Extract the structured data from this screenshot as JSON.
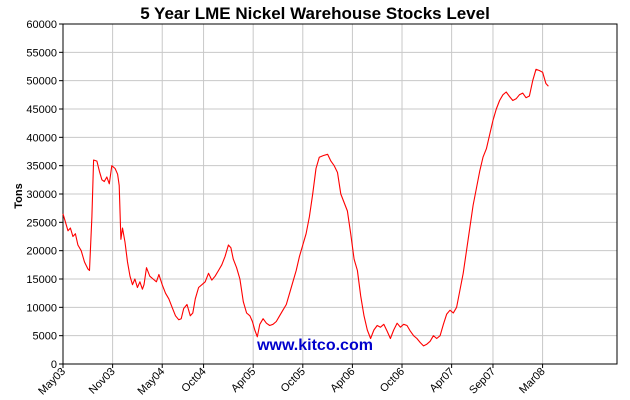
{
  "chart_data": {
    "type": "line",
    "title": "5 Year LME Nickel Warehouse Stocks Level",
    "ylabel": "Tons",
    "xlabel": "",
    "ylim": [
      0,
      60000
    ],
    "yticks": [
      0,
      5000,
      10000,
      15000,
      20000,
      25000,
      30000,
      35000,
      40000,
      45000,
      50000,
      55000,
      60000
    ],
    "xlim": [
      0,
      67
    ],
    "xticks": [
      {
        "label": "May03",
        "t": 0
      },
      {
        "label": "Nov03",
        "t": 6
      },
      {
        "label": "May04",
        "t": 12
      },
      {
        "label": "Oct04",
        "t": 17
      },
      {
        "label": "Apr05",
        "t": 23
      },
      {
        "label": "Oct05",
        "t": 29
      },
      {
        "label": "Apr06",
        "t": 35
      },
      {
        "label": "Oct06",
        "t": 41
      },
      {
        "label": "Apr07",
        "t": 47
      },
      {
        "label": "Sep07",
        "t": 52
      },
      {
        "label": "Mar08",
        "t": 58
      }
    ],
    "grid": true,
    "line_color": "#ff0000",
    "watermark": "www.kitco.com",
    "series": [
      {
        "points": [
          [
            0.0,
            26500
          ],
          [
            0.3,
            25000
          ],
          [
            0.6,
            23500
          ],
          [
            0.9,
            24000
          ],
          [
            1.2,
            22500
          ],
          [
            1.5,
            23000
          ],
          [
            1.8,
            21000
          ],
          [
            2.2,
            20000
          ],
          [
            2.6,
            18000
          ],
          [
            3.0,
            16800
          ],
          [
            3.2,
            16500
          ],
          [
            3.5,
            26000
          ],
          [
            3.7,
            36000
          ],
          [
            4.1,
            35800
          ],
          [
            4.4,
            34000
          ],
          [
            4.7,
            32500
          ],
          [
            5.0,
            32200
          ],
          [
            5.3,
            33000
          ],
          [
            5.6,
            31800
          ],
          [
            5.9,
            35000
          ],
          [
            6.3,
            34500
          ],
          [
            6.6,
            33500
          ],
          [
            6.8,
            31500
          ],
          [
            7.0,
            22000
          ],
          [
            7.2,
            24000
          ],
          [
            7.5,
            21500
          ],
          [
            7.8,
            18000
          ],
          [
            8.1,
            15500
          ],
          [
            8.4,
            14000
          ],
          [
            8.7,
            15000
          ],
          [
            9.0,
            13500
          ],
          [
            9.3,
            14500
          ],
          [
            9.6,
            13200
          ],
          [
            9.8,
            14000
          ],
          [
            10.1,
            17000
          ],
          [
            10.5,
            15500
          ],
          [
            10.9,
            15000
          ],
          [
            11.3,
            14500
          ],
          [
            11.6,
            15800
          ],
          [
            12.0,
            14000
          ],
          [
            12.4,
            12500
          ],
          [
            12.8,
            11500
          ],
          [
            13.2,
            10000
          ],
          [
            13.6,
            8500
          ],
          [
            14.0,
            7800
          ],
          [
            14.3,
            8000
          ],
          [
            14.6,
            9800
          ],
          [
            15.0,
            10500
          ],
          [
            15.4,
            8500
          ],
          [
            15.7,
            9000
          ],
          [
            16.0,
            11500
          ],
          [
            16.4,
            13500
          ],
          [
            16.8,
            14000
          ],
          [
            17.2,
            14500
          ],
          [
            17.6,
            16000
          ],
          [
            18.0,
            14800
          ],
          [
            18.4,
            15500
          ],
          [
            18.8,
            16500
          ],
          [
            19.2,
            17500
          ],
          [
            19.6,
            19000
          ],
          [
            20.0,
            21000
          ],
          [
            20.3,
            20500
          ],
          [
            20.6,
            18500
          ],
          [
            21.0,
            17000
          ],
          [
            21.4,
            15000
          ],
          [
            21.8,
            11000
          ],
          [
            22.2,
            9000
          ],
          [
            22.6,
            8500
          ],
          [
            22.9,
            7500
          ],
          [
            23.2,
            6000
          ],
          [
            23.5,
            4800
          ],
          [
            23.8,
            7000
          ],
          [
            24.2,
            8000
          ],
          [
            24.6,
            7200
          ],
          [
            25.0,
            6800
          ],
          [
            25.4,
            7000
          ],
          [
            25.8,
            7500
          ],
          [
            26.2,
            8500
          ],
          [
            26.6,
            9500
          ],
          [
            27.0,
            10500
          ],
          [
            27.4,
            12500
          ],
          [
            27.8,
            14500
          ],
          [
            28.2,
            16500
          ],
          [
            28.6,
            19000
          ],
          [
            29.0,
            21000
          ],
          [
            29.4,
            23000
          ],
          [
            29.8,
            26000
          ],
          [
            30.2,
            30000
          ],
          [
            30.6,
            34500
          ],
          [
            31.0,
            36500
          ],
          [
            31.5,
            36800
          ],
          [
            32.0,
            37000
          ],
          [
            32.4,
            35800
          ],
          [
            32.8,
            35000
          ],
          [
            33.2,
            33800
          ],
          [
            33.6,
            30000
          ],
          [
            34.0,
            28500
          ],
          [
            34.4,
            27000
          ],
          [
            34.8,
            23000
          ],
          [
            35.2,
            18500
          ],
          [
            35.6,
            16500
          ],
          [
            36.0,
            12000
          ],
          [
            36.4,
            8500
          ],
          [
            36.8,
            6000
          ],
          [
            37.2,
            4500
          ],
          [
            37.6,
            6000
          ],
          [
            38.0,
            6800
          ],
          [
            38.4,
            6500
          ],
          [
            38.8,
            7000
          ],
          [
            39.2,
            5800
          ],
          [
            39.6,
            4500
          ],
          [
            40.0,
            6000
          ],
          [
            40.4,
            7200
          ],
          [
            40.8,
            6500
          ],
          [
            41.2,
            7000
          ],
          [
            41.6,
            6800
          ],
          [
            42.0,
            5800
          ],
          [
            42.4,
            5000
          ],
          [
            42.8,
            4500
          ],
          [
            43.2,
            3800
          ],
          [
            43.6,
            3200
          ],
          [
            44.0,
            3500
          ],
          [
            44.4,
            4000
          ],
          [
            44.8,
            5000
          ],
          [
            45.2,
            4500
          ],
          [
            45.6,
            5000
          ],
          [
            46.0,
            7000
          ],
          [
            46.4,
            8800
          ],
          [
            46.8,
            9500
          ],
          [
            47.2,
            9000
          ],
          [
            47.6,
            10000
          ],
          [
            48.0,
            13000
          ],
          [
            48.4,
            16000
          ],
          [
            48.8,
            20000
          ],
          [
            49.2,
            24000
          ],
          [
            49.6,
            28000
          ],
          [
            50.0,
            31000
          ],
          [
            50.4,
            34000
          ],
          [
            50.8,
            36500
          ],
          [
            51.2,
            38000
          ],
          [
            51.6,
            40500
          ],
          [
            52.0,
            43000
          ],
          [
            52.4,
            45000
          ],
          [
            52.8,
            46500
          ],
          [
            53.2,
            47500
          ],
          [
            53.6,
            48000
          ],
          [
            54.0,
            47200
          ],
          [
            54.4,
            46500
          ],
          [
            54.8,
            46800
          ],
          [
            55.2,
            47500
          ],
          [
            55.6,
            47800
          ],
          [
            56.0,
            47000
          ],
          [
            56.4,
            47300
          ],
          [
            56.8,
            50000
          ],
          [
            57.2,
            52000
          ],
          [
            57.6,
            51800
          ],
          [
            58.0,
            51500
          ],
          [
            58.4,
            49500
          ],
          [
            58.7,
            49000
          ]
        ]
      }
    ]
  }
}
